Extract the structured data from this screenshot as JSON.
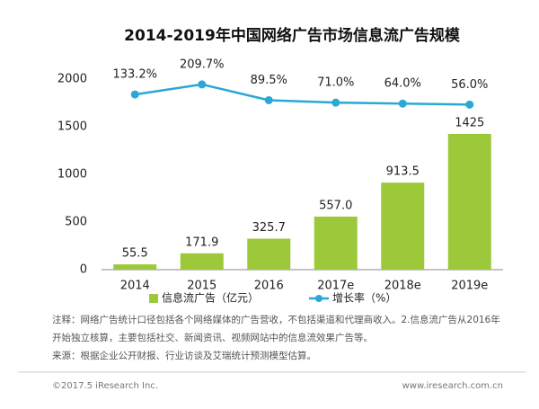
{
  "chart_data": {
    "type": "bar",
    "title": "2014-2019年中国网络广告市场信息流广告规模",
    "categories": [
      "2014",
      "2015",
      "2016",
      "2017e",
      "2018e",
      "2019e"
    ],
    "series": [
      {
        "name": "信息流广告（亿元）",
        "type": "bar",
        "color": "#9cc93a",
        "values": [
          55.5,
          171.9,
          325.7,
          557.0,
          913.5,
          1425
        ],
        "value_labels": [
          "55.5",
          "171.9",
          "325.7",
          "557.0",
          "913.5",
          "1425"
        ]
      },
      {
        "name": "增长率（%）",
        "type": "line",
        "axis": "y2",
        "color": "#2aa8d6",
        "values": [
          133.2,
          209.7,
          89.5,
          71.0,
          64.0,
          56.0
        ],
        "value_labels": [
          "133.2%",
          "209.7%",
          "89.5%",
          "71.0%",
          "64.0%",
          "56.0%"
        ]
      }
    ],
    "ylim": [
      0,
      2000
    ],
    "yticks": [
      0,
      500,
      1000,
      1500,
      2000
    ],
    "y2lim": [
      -1200,
      250
    ],
    "grid": false,
    "note": "注释：网络广告统计口径包括各个网络媒体的广告营收，不包括渠道和代理商收入。2.信息流广告从2016年开始独立核算，主要包括社交、新闻资讯、视频网站中的信息流效果广告等。",
    "source": "来源：根据企业公开财报、行业访谈及艾瑞统计预测模型估算。",
    "copyright": "©2017.5 iResearch Inc.",
    "website": "www.iresearch.com.cn"
  }
}
